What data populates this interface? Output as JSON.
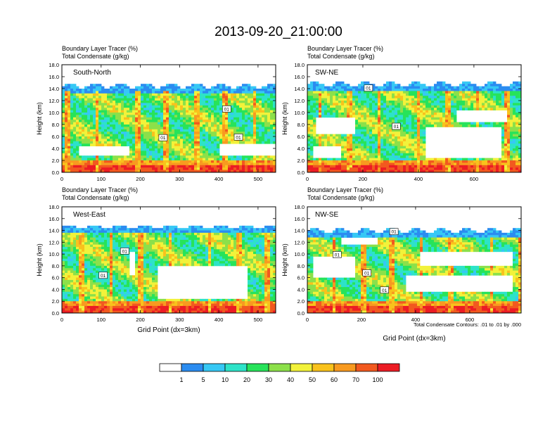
{
  "title": "2013-09-20_21:00:00",
  "footnote": "Total Condensate Contours: .01 to .01 by .000",
  "colorbar": {
    "colors": [
      "#ffffff",
      "#2b8cf0",
      "#36c8f5",
      "#2de3c8",
      "#27e35a",
      "#8ce04a",
      "#f2f23a",
      "#f9c21c",
      "#f89a20",
      "#f2591f",
      "#ec1c24"
    ],
    "labels": [
      "1",
      "5",
      "10",
      "20",
      "30",
      "40",
      "50",
      "60",
      "70",
      "100"
    ]
  },
  "chart_data": [
    {
      "type": "heatmap",
      "name": "South-North",
      "subtitle1": "Boundary Layer Tracer   (%)",
      "subtitle2": "Total Condensate   (g/kg)",
      "ylabel": "Height (km)",
      "xlabel": "",
      "xlim": [
        0,
        545
      ],
      "ylim": [
        0,
        18
      ],
      "xticks": [
        0,
        100,
        200,
        300,
        400,
        500
      ],
      "yticks": [
        "0.0",
        "2.0",
        "4.0",
        "6.0",
        "8.0",
        "10.0",
        "12.0",
        "14.0",
        "16.0",
        "18.0"
      ],
      "contour_labels": [
        {
          "x": 420,
          "y": 10.6,
          "t": "01"
        },
        {
          "x": 450,
          "y": 5.9,
          "t": "01"
        },
        {
          "x": 258,
          "y": 5.8,
          "t": "01"
        }
      ],
      "top_km": 14.5,
      "clear_zones": [
        [
          40,
          175,
          2.8,
          4.2
        ],
        [
          400,
          545,
          2.8,
          4.6
        ]
      ]
    },
    {
      "type": "heatmap",
      "name": "SW-NE",
      "subtitle1": "Boundary Layer Tracer   (%)",
      "subtitle2": "Total Condensate   (g/kg)",
      "ylabel": "Height (km)",
      "xlabel": "",
      "xlim": [
        0,
        770
      ],
      "ylim": [
        0,
        18
      ],
      "xticks": [
        0,
        200,
        400,
        600
      ],
      "yticks": [
        "0.0",
        "2.0",
        "4.0",
        "6.0",
        "8.0",
        "10.0",
        "12.0",
        "14.0",
        "16.0",
        "18.0"
      ],
      "contour_labels": [
        {
          "x": 220,
          "y": 14.1,
          "t": "01"
        },
        {
          "x": 320,
          "y": 7.7,
          "t": "01"
        }
      ],
      "top_km": 14.8,
      "clear_zones": [
        [
          30,
          170,
          6.5,
          9.2
        ],
        [
          430,
          700,
          2.2,
          7.5
        ],
        [
          540,
          720,
          8.5,
          10.5
        ],
        [
          20,
          120,
          2.4,
          4.2
        ]
      ]
    },
    {
      "type": "heatmap",
      "name": "West-East",
      "subtitle1": "Boundary Layer Tracer   (%)",
      "subtitle2": "Total Condensate   (g/kg)",
      "ylabel": "Height (km)",
      "xlabel": "Grid Point (dx=3km)",
      "xlim": [
        0,
        545
      ],
      "ylim": [
        0,
        18
      ],
      "xticks": [
        0,
        100,
        200,
        300,
        400,
        500
      ],
      "yticks": [
        "0.0",
        "2.0",
        "4.0",
        "6.0",
        "8.0",
        "10.0",
        "12.0",
        "14.0",
        "16.0",
        "18.0"
      ],
      "contour_labels": [
        {
          "x": 160,
          "y": 10.5,
          "t": "01"
        },
        {
          "x": 105,
          "y": 6.4,
          "t": "01"
        }
      ],
      "top_km": 14.6,
      "clear_zones": [
        [
          245,
          470,
          2.5,
          8.2
        ],
        [
          170,
          190,
          6.5,
          10.5
        ]
      ]
    },
    {
      "type": "heatmap",
      "name": "NW-SE",
      "subtitle1": "Boundary Layer Tracer   (%)",
      "subtitle2": "Total Condensate   (g/kg)",
      "ylabel": "Height (km)",
      "xlabel": "Grid Point (dx=3km)",
      "xlim": [
        0,
        790
      ],
      "ylim": [
        0,
        18
      ],
      "xticks": [
        0,
        200,
        400,
        600
      ],
      "yticks": [
        "0.0",
        "2.0",
        "4.0",
        "6.0",
        "8.0",
        "10.0",
        "12.0",
        "14.0",
        "16.0",
        "18.0"
      ],
      "contour_labels": [
        {
          "x": 320,
          "y": 13.8,
          "t": "01"
        },
        {
          "x": 110,
          "y": 9.9,
          "t": "01"
        },
        {
          "x": 220,
          "y": 6.8,
          "t": "01"
        },
        {
          "x": 285,
          "y": 3.9,
          "t": "01"
        }
      ],
      "top_km": 14.0,
      "clear_zones": [
        [
          20,
          180,
          6.0,
          9.5
        ],
        [
          360,
          760,
          3.5,
          6.5
        ],
        [
          420,
          760,
          8.0,
          10.5
        ],
        [
          120,
          260,
          11.5,
          12.8
        ]
      ]
    }
  ]
}
